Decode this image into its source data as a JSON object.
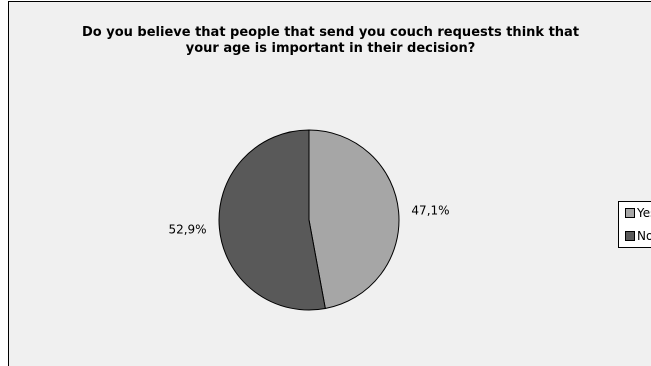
{
  "chart_data": {
    "type": "pie",
    "title": "Do you believe that people that send you couch requests think that\nyour age is important in their decision?",
    "categories": [
      "Yes",
      "No"
    ],
    "values": [
      47.1,
      52.9
    ],
    "labels": [
      "47,1%",
      "52,9%"
    ],
    "colors": [
      "#a6a6a6",
      "#595959"
    ],
    "legend_position": "right"
  }
}
